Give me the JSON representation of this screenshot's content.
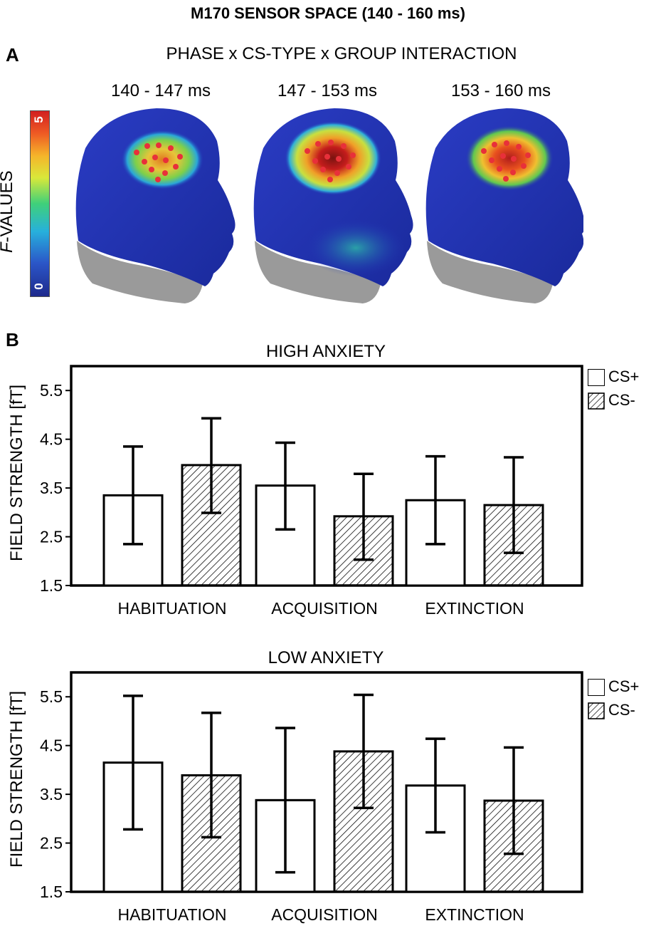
{
  "title": "M170 SENSOR SPACE (140 - 160 ms)",
  "panel_a": {
    "letter": "A",
    "heading": "PHASE x CS-TYPE x GROUP INTERACTION",
    "time_windows": [
      "140 - 147 ms",
      "147 - 153 ms",
      "153 - 160 ms"
    ],
    "colorbar": {
      "label_italic": "F",
      "label_rest": "-VALUES",
      "min": "0",
      "max": "5"
    },
    "colors": {
      "head": "#2233b8",
      "hot": "#d21f1f",
      "sensor": "#e8303a",
      "neck": "#9a9a9a"
    }
  },
  "panel_b": {
    "letter": "B"
  },
  "legend": {
    "cs_plus": "CS+",
    "cs_minus": "CS-"
  },
  "chart_data": [
    {
      "type": "bar",
      "title": "HIGH ANXIETY",
      "categories": [
        "HABITUATION",
        "ACQUISITION",
        "EXTINCTION"
      ],
      "ylabel": "FIELD STRENGTH [fT]",
      "ylim": [
        1.5,
        6.0
      ],
      "yticks": [
        "1.5",
        "2.5",
        "3.5",
        "4.5",
        "5.5"
      ],
      "series": [
        {
          "name": "CS+",
          "values": [
            3.35,
            3.55,
            3.25
          ],
          "err_low": [
            2.35,
            2.65,
            2.35
          ],
          "err_high": [
            4.35,
            4.43,
            4.15
          ]
        },
        {
          "name": "CS-",
          "values": [
            3.97,
            2.92,
            3.15
          ],
          "err_low": [
            2.99,
            2.03,
            2.17
          ],
          "err_high": [
            4.93,
            3.79,
            4.13
          ]
        }
      ]
    },
    {
      "type": "bar",
      "title": "LOW ANXIETY",
      "categories": [
        "HABITUATION",
        "ACQUISITION",
        "EXTINCTION"
      ],
      "ylabel": "FIELD STRENGTH [fT]",
      "ylim": [
        1.5,
        6.0
      ],
      "yticks": [
        "1.5",
        "2.5",
        "3.5",
        "4.5",
        "5.5"
      ],
      "series": [
        {
          "name": "CS+",
          "values": [
            4.15,
            3.38,
            3.68
          ],
          "err_low": [
            2.78,
            1.9,
            2.72
          ],
          "err_high": [
            5.52,
            4.86,
            4.64
          ]
        },
        {
          "name": "CS-",
          "values": [
            3.89,
            4.38,
            3.37
          ],
          "err_low": [
            2.62,
            3.22,
            2.28
          ],
          "err_high": [
            5.17,
            5.54,
            4.46
          ]
        }
      ]
    }
  ]
}
